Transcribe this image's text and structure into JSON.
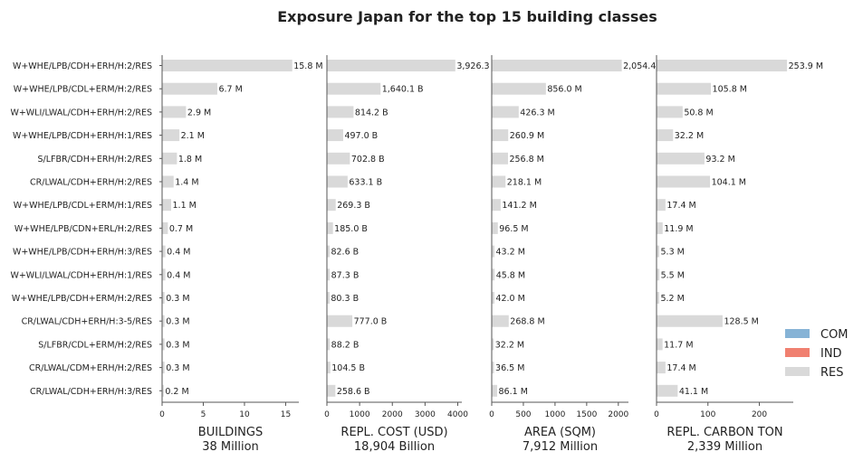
{
  "chart_data": {
    "type": "bar",
    "orientation": "horizontal",
    "title": "Exposure Japan for the top 15 building classes",
    "categories": [
      "W+WHE/LPB/CDH+ERH/H:2/RES",
      "W+WHE/LPB/CDL+ERM/H:2/RES",
      "W+WLI/LWAL/CDH+ERH/H:2/RES",
      "W+WHE/LPB/CDH+ERH/H:1/RES",
      "S/LFBR/CDH+ERH/H:2/RES",
      "CR/LWAL/CDH+ERH/H:2/RES",
      "W+WHE/LPB/CDL+ERM/H:1/RES",
      "W+WHE/LPB/CDN+ERL/H:2/RES",
      "W+WHE/LPB/CDH+ERH/H:3/RES",
      "W+WLI/LWAL/CDH+ERH/H:1/RES",
      "W+WHE/LPB/CDH+ERM/H:2/RES",
      "CR/LWAL/CDH+ERH/H:3-5/RES",
      "S/LFBR/CDL+ERM/H:2/RES",
      "CR/LWAL/CDM+ERH/H:2/RES",
      "CR/LWAL/CDH+ERH/H:3/RES"
    ],
    "legend": {
      "placement": "right",
      "entries": [
        {
          "name": "COM",
          "color": "#86b3d6"
        },
        {
          "name": "IND",
          "color": "#f08070"
        },
        {
          "name": "RES",
          "color": "#d9d9d9"
        }
      ]
    },
    "panels": [
      {
        "xlabel": "BUILDINGS",
        "total": "38 Million",
        "xlim": [
          0,
          16.6
        ],
        "ticks": [
          0,
          5,
          10,
          15
        ],
        "tick_labels": [
          "0",
          "5",
          "10",
          "15"
        ],
        "values": [
          15.8,
          6.7,
          2.9,
          2.1,
          1.8,
          1.4,
          1.1,
          0.7,
          0.4,
          0.4,
          0.3,
          0.3,
          0.3,
          0.3,
          0.2
        ],
        "labels": [
          "15.8 M",
          "6.7 M",
          "2.9 M",
          "2.1 M",
          "1.8 M",
          "1.4 M",
          "1.1 M",
          "0.7 M",
          "0.4 M",
          "0.4 M",
          "0.3 M",
          "0.3 M",
          "0.3 M",
          "0.3 M",
          "0.2 M"
        ]
      },
      {
        "xlabel": "REPL. COST (USD)",
        "total": "18,904 Billion",
        "xlim": [
          0,
          4125
        ],
        "ticks": [
          0,
          1000,
          2000,
          3000,
          4000
        ],
        "tick_labels": [
          "0",
          "1000",
          "2000",
          "3000",
          "4000"
        ],
        "values": [
          3926.3,
          1640.1,
          814.2,
          497.0,
          702.8,
          633.1,
          269.3,
          185.0,
          82.6,
          87.3,
          80.3,
          777.0,
          88.2,
          104.5,
          258.6
        ],
        "labels": [
          "3,926.3 B",
          "1,640.1 B",
          "814.2 B",
          "497.0 B",
          "702.8 B",
          "633.1 B",
          "269.3 B",
          "185.0 B",
          "82.6 B",
          "87.3 B",
          "80.3 B",
          "777.0 B",
          "88.2 B",
          "104.5 B",
          "258.6 B"
        ]
      },
      {
        "xlabel": "AREA (SQM)",
        "total": "7,912 Million",
        "xlim": [
          0,
          2160
        ],
        "ticks": [
          0,
          500,
          1000,
          1500,
          2000
        ],
        "tick_labels": [
          "0",
          "500",
          "1000",
          "1500",
          "2000"
        ],
        "values": [
          2054.4,
          856.0,
          426.3,
          260.9,
          256.8,
          218.1,
          141.2,
          96.5,
          43.2,
          45.8,
          42.0,
          268.8,
          32.2,
          36.5,
          86.1
        ],
        "labels": [
          "2,054.4 M",
          "856.0 M",
          "426.3 M",
          "260.9 M",
          "256.8 M",
          "218.1 M",
          "141.2 M",
          "96.5 M",
          "43.2 M",
          "45.8 M",
          "42.0 M",
          "268.8 M",
          "32.2 M",
          "36.5 M",
          "86.1 M"
        ]
      },
      {
        "xlabel": "REPL. CARBON TON",
        "total": "2,339 Million",
        "xlim": [
          0,
          266
        ],
        "ticks": [
          0,
          100,
          200
        ],
        "tick_labels": [
          "0",
          "100",
          "200"
        ],
        "values": [
          253.9,
          105.8,
          50.8,
          32.2,
          93.2,
          104.1,
          17.4,
          11.9,
          5.3,
          5.5,
          5.2,
          128.5,
          11.7,
          17.4,
          41.1
        ],
        "labels": [
          "253.9 M",
          "105.8 M",
          "50.8 M",
          "32.2 M",
          "93.2 M",
          "104.1 M",
          "17.4 M",
          "11.9 M",
          "5.3 M",
          "5.5 M",
          "5.2 M",
          "128.5 M",
          "11.7 M",
          "17.4 M",
          "41.1 M"
        ]
      }
    ]
  },
  "colors": {
    "res_bar": "#d9d9d9",
    "axis": "#555555"
  }
}
